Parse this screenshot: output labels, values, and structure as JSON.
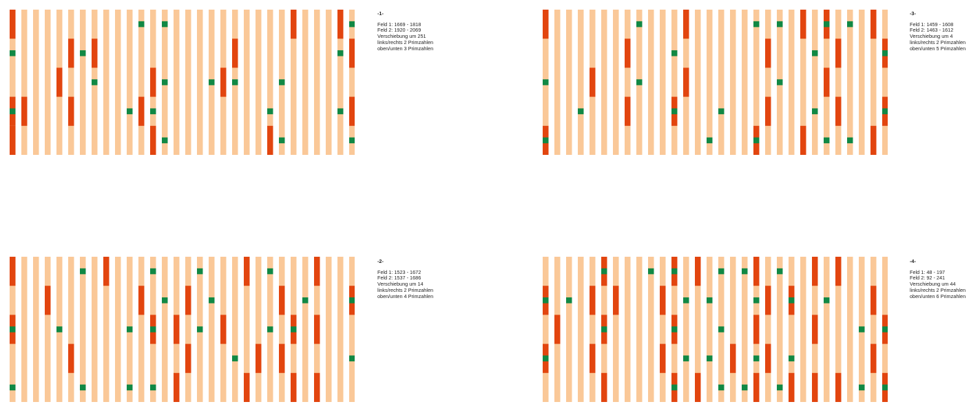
{
  "colors": {
    "stripe": "#FAC898",
    "red": "#E2450F",
    "green": "#118844"
  },
  "grid": {
    "columns": 30,
    "rows": 5
  },
  "panels": [
    {
      "number": "-1-",
      "lines": [
        "Feld 1: 1669 - 1818",
        "Feld 2: 1920 - 2069",
        "Verschiebung um 251",
        "links/rechts 2 Primzahlen",
        "oben/unten 3 Primzahlen"
      ],
      "red_cells": [
        [
          0,
          0
        ],
        [
          0,
          3
        ],
        [
          0,
          4
        ],
        [
          1,
          3
        ],
        [
          4,
          2
        ],
        [
          5,
          1
        ],
        [
          5,
          3
        ],
        [
          7,
          1
        ],
        [
          11,
          3
        ],
        [
          12,
          2
        ],
        [
          12,
          4
        ],
        [
          18,
          2
        ],
        [
          19,
          1
        ],
        [
          22,
          4
        ],
        [
          24,
          0
        ],
        [
          28,
          0
        ],
        [
          29,
          1
        ],
        [
          29,
          3
        ]
      ],
      "green_cells": [
        [
          0,
          1
        ],
        [
          0,
          3
        ],
        [
          6,
          1
        ],
        [
          7,
          2
        ],
        [
          10,
          3
        ],
        [
          11,
          0
        ],
        [
          12,
          3
        ],
        [
          13,
          0
        ],
        [
          13,
          2
        ],
        [
          13,
          4
        ],
        [
          17,
          2
        ],
        [
          19,
          2
        ],
        [
          22,
          3
        ],
        [
          23,
          2
        ],
        [
          23,
          4
        ],
        [
          28,
          1
        ],
        [
          28,
          3
        ],
        [
          29,
          0
        ],
        [
          29,
          4
        ]
      ]
    },
    {
      "number": "-2-",
      "lines": [
        "Feld 1: 1523 - 1672",
        "Feld 2: 1537 - 1686",
        "Verschiebung um 14",
        "links/rechts 2 Primzahlen",
        "oben/unten 4 Primzahlen"
      ],
      "red_cells": [
        [
          0,
          0
        ],
        [
          0,
          2
        ],
        [
          3,
          1
        ],
        [
          5,
          3
        ],
        [
          8,
          0
        ],
        [
          11,
          1
        ],
        [
          12,
          2
        ],
        [
          14,
          2
        ],
        [
          14,
          4
        ],
        [
          15,
          1
        ],
        [
          15,
          3
        ],
        [
          18,
          2
        ],
        [
          20,
          0
        ],
        [
          20,
          4
        ],
        [
          21,
          3
        ],
        [
          23,
          1
        ],
        [
          23,
          3
        ],
        [
          24,
          2
        ],
        [
          24,
          4
        ],
        [
          26,
          0
        ],
        [
          26,
          2
        ],
        [
          26,
          4
        ],
        [
          29,
          1
        ]
      ],
      "green_cells": [
        [
          0,
          2
        ],
        [
          0,
          4
        ],
        [
          4,
          2
        ],
        [
          6,
          0
        ],
        [
          6,
          4
        ],
        [
          10,
          2
        ],
        [
          10,
          4
        ],
        [
          12,
          0
        ],
        [
          12,
          2
        ],
        [
          12,
          4
        ],
        [
          13,
          1
        ],
        [
          16,
          0
        ],
        [
          16,
          2
        ],
        [
          17,
          1
        ],
        [
          19,
          3
        ],
        [
          22,
          0
        ],
        [
          22,
          2
        ],
        [
          24,
          2
        ],
        [
          25,
          1
        ],
        [
          29,
          1
        ],
        [
          29,
          3
        ]
      ]
    },
    {
      "number": "-3-",
      "lines": [
        "Feld 1: 1459 - 1608",
        "Feld 2: 1463 - 1612",
        "Verschiebung um 4",
        "links/rechts 2 Primzahlen",
        "oben/unten 5 Primzahlen"
      ],
      "red_cells": [
        [
          0,
          0
        ],
        [
          0,
          4
        ],
        [
          4,
          2
        ],
        [
          7,
          1
        ],
        [
          7,
          3
        ],
        [
          11,
          3
        ],
        [
          12,
          0
        ],
        [
          12,
          2
        ],
        [
          18,
          4
        ],
        [
          19,
          1
        ],
        [
          19,
          3
        ],
        [
          22,
          0
        ],
        [
          22,
          4
        ],
        [
          24,
          0
        ],
        [
          24,
          2
        ],
        [
          25,
          1
        ],
        [
          25,
          3
        ],
        [
          28,
          0
        ],
        [
          28,
          4
        ],
        [
          29,
          1
        ],
        [
          29,
          3
        ]
      ],
      "green_cells": [
        [
          0,
          2
        ],
        [
          0,
          4
        ],
        [
          3,
          3
        ],
        [
          8,
          0
        ],
        [
          8,
          2
        ],
        [
          11,
          1
        ],
        [
          11,
          3
        ],
        [
          14,
          4
        ],
        [
          15,
          3
        ],
        [
          18,
          0
        ],
        [
          18,
          4
        ],
        [
          20,
          0
        ],
        [
          20,
          2
        ],
        [
          23,
          1
        ],
        [
          23,
          3
        ],
        [
          24,
          0
        ],
        [
          24,
          4
        ],
        [
          26,
          0
        ],
        [
          26,
          4
        ],
        [
          29,
          1
        ],
        [
          29,
          3
        ]
      ]
    },
    {
      "number": "-4-",
      "lines": [
        "Feld 1: 48 - 197",
        "Feld 2: 92 - 241",
        "Verschiebung um 44",
        "links/rechts 2 Primzahlen",
        "oben/unten 6 Primzahlen"
      ],
      "red_cells": [
        [
          0,
          1
        ],
        [
          0,
          3
        ],
        [
          1,
          2
        ],
        [
          4,
          1
        ],
        [
          4,
          3
        ],
        [
          5,
          0
        ],
        [
          5,
          2
        ],
        [
          5,
          4
        ],
        [
          6,
          1
        ],
        [
          10,
          1
        ],
        [
          10,
          3
        ],
        [
          11,
          0
        ],
        [
          11,
          2
        ],
        [
          11,
          4
        ],
        [
          13,
          0
        ],
        [
          13,
          4
        ],
        [
          16,
          3
        ],
        [
          18,
          0
        ],
        [
          18,
          2
        ],
        [
          18,
          4
        ],
        [
          19,
          1
        ],
        [
          19,
          3
        ],
        [
          21,
          1
        ],
        [
          21,
          4
        ],
        [
          23,
          0
        ],
        [
          23,
          2
        ],
        [
          23,
          4
        ],
        [
          25,
          0
        ],
        [
          25,
          4
        ],
        [
          28,
          1
        ],
        [
          28,
          3
        ],
        [
          29,
          2
        ],
        [
          29,
          4
        ]
      ],
      "green_cells": [
        [
          0,
          1
        ],
        [
          0,
          3
        ],
        [
          2,
          1
        ],
        [
          5,
          0
        ],
        [
          5,
          2
        ],
        [
          9,
          0
        ],
        [
          11,
          0
        ],
        [
          11,
          2
        ],
        [
          11,
          4
        ],
        [
          12,
          1
        ],
        [
          12,
          3
        ],
        [
          14,
          1
        ],
        [
          14,
          3
        ],
        [
          15,
          0
        ],
        [
          15,
          2
        ],
        [
          15,
          4
        ],
        [
          17,
          0
        ],
        [
          17,
          4
        ],
        [
          18,
          1
        ],
        [
          18,
          3
        ],
        [
          20,
          0
        ],
        [
          20,
          4
        ],
        [
          21,
          1
        ],
        [
          21,
          3
        ],
        [
          24,
          1
        ],
        [
          27,
          2
        ],
        [
          27,
          4
        ],
        [
          29,
          2
        ],
        [
          29,
          4
        ]
      ]
    }
  ]
}
